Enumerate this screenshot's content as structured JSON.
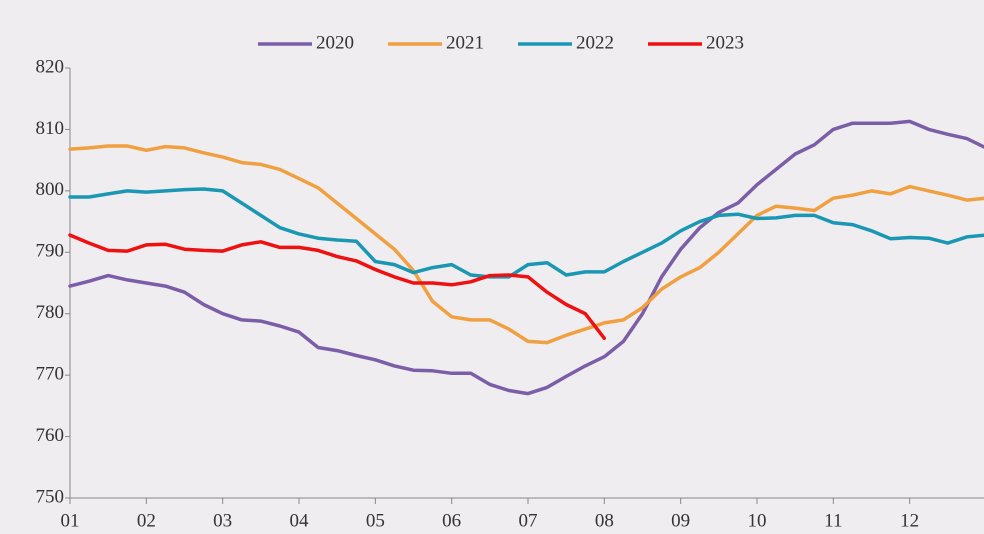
{
  "chart_data": {
    "type": "line",
    "x": [
      1,
      1.25,
      1.5,
      1.75,
      2,
      2.25,
      2.5,
      2.75,
      3,
      3.25,
      3.5,
      3.75,
      4,
      4.25,
      4.5,
      4.75,
      5,
      5.25,
      5.5,
      5.75,
      6,
      6.25,
      6.5,
      6.75,
      7,
      7.25,
      7.5,
      7.75,
      8,
      8.25,
      8.5,
      8.75,
      9,
      9.25,
      9.5,
      9.75,
      10,
      10.25,
      10.5,
      10.75,
      11,
      11.25,
      11.5,
      11.75,
      12,
      12.25,
      12.5,
      12.75,
      13
    ],
    "series": [
      {
        "name": "2020",
        "color": "#7b5ea7",
        "values": [
          784.5,
          785.3,
          786.2,
          785.5,
          785,
          784.5,
          783.5,
          781.5,
          780,
          779,
          778.8,
          778,
          777,
          774.5,
          774,
          773.2,
          772.5,
          771.5,
          770.8,
          770.7,
          770.3,
          770.3,
          768.5,
          767.5,
          767,
          768,
          769.8,
          771.5,
          773,
          775.5,
          780,
          786,
          790.5,
          794,
          796.5,
          798,
          801,
          803.5,
          806,
          807.5,
          810,
          811,
          811,
          811,
          811.3,
          810,
          809.2,
          808.5,
          807
        ]
      },
      {
        "name": "2021",
        "color": "#f0a040",
        "values": [
          806.8,
          807,
          807.3,
          807.3,
          806.6,
          807.2,
          807,
          806.2,
          805.5,
          804.6,
          804.3,
          803.5,
          802,
          800.5,
          798,
          795.5,
          793,
          790.5,
          787,
          782,
          779.5,
          779,
          779,
          777.5,
          775.5,
          775.3,
          776.5,
          777.5,
          778.5,
          779,
          781,
          784,
          786,
          787.5,
          790,
          793,
          796,
          797.5,
          797.2,
          796.8,
          798.8,
          799.3,
          800,
          799.5,
          800.7,
          800,
          799.3,
          798.5,
          798.8
        ]
      },
      {
        "name": "2022",
        "color": "#1a97b3",
        "values": [
          799,
          799,
          799.5,
          800,
          799.8,
          800,
          800.2,
          800.3,
          800,
          798,
          796,
          794,
          793,
          792.3,
          792,
          791.8,
          788.5,
          788,
          786.7,
          787.5,
          788,
          786.3,
          786,
          786,
          788,
          788.3,
          786.3,
          786.8,
          786.8,
          788.5,
          790,
          791.5,
          793.5,
          795,
          796,
          796.2,
          795.5,
          795.6,
          796,
          796,
          794.8,
          794.5,
          793.5,
          792.2,
          792.4,
          792.3,
          791.5,
          792.5,
          792.8
        ]
      },
      {
        "name": "2023",
        "color": "#ee1111",
        "values": [
          792.8,
          791.5,
          790.3,
          790.2,
          791.2,
          791.3,
          790.5,
          790.3,
          790.2,
          791.2,
          791.7,
          790.8,
          790.8,
          790.3,
          789.3,
          788.6,
          787.2,
          786,
          785,
          785,
          784.7,
          785.2,
          786.2,
          786.3,
          786,
          783.5,
          781.5,
          780,
          776,
          null,
          null,
          null,
          null,
          null,
          null,
          null,
          null,
          null,
          null,
          null,
          null,
          null,
          null,
          null,
          null,
          null,
          null,
          null,
          null
        ]
      }
    ],
    "xlim": [
      1,
      13
    ],
    "xticks": [
      {
        "value": 1,
        "label": "01"
      },
      {
        "value": 2,
        "label": "02"
      },
      {
        "value": 3,
        "label": "03"
      },
      {
        "value": 4,
        "label": "04"
      },
      {
        "value": 5,
        "label": "05"
      },
      {
        "value": 6,
        "label": "06"
      },
      {
        "value": 7,
        "label": "07"
      },
      {
        "value": 8,
        "label": "08"
      },
      {
        "value": 9,
        "label": "09"
      },
      10,
      11,
      12
    ],
    "ylim": [
      750,
      820
    ],
    "yticks": [
      750,
      760,
      770,
      780,
      790,
      800,
      810,
      820
    ],
    "grid": false,
    "legend": "top"
  }
}
